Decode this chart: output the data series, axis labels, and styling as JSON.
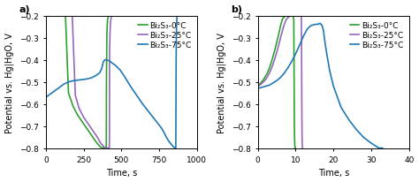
{
  "panel_a": {
    "label": "a)",
    "xlabel": "Time, s",
    "ylabel": "Potential vs. Hg|HgO, V",
    "xlim": [
      0,
      1000
    ],
    "ylim": [
      -0.8,
      -0.2
    ],
    "yticks": [
      -0.8,
      -0.7,
      -0.6,
      -0.5,
      -0.4,
      -0.3,
      -0.2
    ],
    "xticks": [
      0,
      250,
      500,
      750,
      1000
    ],
    "legend_labels": [
      "Bi₂S₃-0°C",
      "Bi₂S₃-25°C",
      "Bi₂S₃-75°C"
    ],
    "colors": [
      "#2ca02c",
      "#9467bd",
      "#1f77b4"
    ],
    "green_t": [
      130,
      150,
      180,
      210,
      240,
      270,
      300,
      330,
      360,
      380,
      395,
      400,
      400.5,
      401,
      404,
      408,
      413,
      418
    ],
    "green_v": [
      -0.2,
      -0.55,
      -0.61,
      -0.65,
      -0.68,
      -0.71,
      -0.74,
      -0.77,
      -0.795,
      -0.8,
      -0.8,
      -0.8,
      -0.75,
      -0.5,
      -0.28,
      -0.22,
      -0.205,
      -0.2
    ],
    "purple_t": [
      175,
      195,
      220,
      250,
      280,
      310,
      340,
      365,
      393,
      410,
      420,
      421,
      421.5,
      422,
      425,
      428,
      432,
      437
    ],
    "purple_v": [
      -0.2,
      -0.56,
      -0.62,
      -0.66,
      -0.69,
      -0.72,
      -0.75,
      -0.78,
      -0.8,
      -0.8,
      -0.8,
      -0.75,
      -0.5,
      -0.35,
      -0.27,
      -0.23,
      -0.21,
      -0.2
    ],
    "blue_t": [
      0,
      30,
      60,
      90,
      120,
      150,
      180,
      210,
      240,
      270,
      300,
      330,
      355,
      370,
      375,
      380,
      385,
      390,
      395,
      400,
      420,
      440,
      460,
      490,
      520,
      560,
      600,
      640,
      680,
      720,
      755,
      770,
      790,
      800,
      820,
      845,
      855,
      858,
      860,
      861,
      862,
      863,
      865,
      868
    ],
    "blue_v": [
      -0.57,
      -0.555,
      -0.54,
      -0.525,
      -0.51,
      -0.5,
      -0.495,
      -0.492,
      -0.49,
      -0.487,
      -0.482,
      -0.472,
      -0.46,
      -0.44,
      -0.425,
      -0.41,
      -0.405,
      -0.4,
      -0.4,
      -0.4,
      -0.405,
      -0.415,
      -0.425,
      -0.445,
      -0.475,
      -0.52,
      -0.56,
      -0.6,
      -0.635,
      -0.67,
      -0.7,
      -0.715,
      -0.74,
      -0.755,
      -0.775,
      -0.795,
      -0.8,
      -0.8,
      -0.8,
      -0.6,
      -0.42,
      -0.32,
      -0.24,
      -0.2
    ]
  },
  "panel_b": {
    "label": "b)",
    "xlabel": "Time, s",
    "ylabel": "Potential vs. Hg|HgO, V",
    "xlim": [
      0,
      40
    ],
    "ylim": [
      -0.8,
      -0.2
    ],
    "yticks": [
      -0.8,
      -0.7,
      -0.6,
      -0.5,
      -0.4,
      -0.3,
      -0.2
    ],
    "xticks": [
      0,
      10,
      20,
      30,
      40
    ],
    "legend_labels": [
      "Bi₂S₃-0°C",
      "Bi₂S₃-25°C",
      "Bi₂S₃-75°C"
    ],
    "colors": [
      "#2ca02c",
      "#9467bd",
      "#1f77b4"
    ],
    "green_t": [
      0,
      0.5,
      1.0,
      1.5,
      2.0,
      2.5,
      3.0,
      3.5,
      4.0,
      4.5,
      5.0,
      5.5,
      6.0,
      6.5,
      7.0,
      7.5,
      8.0,
      8.5,
      9.0,
      9.3,
      9.5,
      9.55,
      9.6,
      9.65,
      9.7,
      9.75,
      9.8,
      9.85,
      9.9
    ],
    "green_v": [
      -0.52,
      -0.51,
      -0.5,
      -0.49,
      -0.475,
      -0.46,
      -0.44,
      -0.415,
      -0.385,
      -0.355,
      -0.32,
      -0.285,
      -0.245,
      -0.215,
      -0.205,
      -0.2,
      -0.2,
      -0.2,
      -0.2,
      -0.2,
      -0.22,
      -0.35,
      -0.55,
      -0.68,
      -0.75,
      -0.78,
      -0.795,
      -0.8,
      -0.8
    ],
    "purple_t": [
      0,
      0.5,
      1.0,
      1.5,
      2.0,
      2.5,
      3.0,
      3.5,
      4.0,
      4.5,
      5.0,
      5.5,
      6.0,
      6.5,
      7.0,
      7.5,
      8.0,
      8.5,
      9.0,
      9.5,
      10.0,
      10.5,
      11.0,
      11.4,
      11.5,
      11.55,
      11.6,
      11.65,
      11.7,
      11.75,
      11.8
    ],
    "purple_v": [
      -0.52,
      -0.515,
      -0.508,
      -0.5,
      -0.49,
      -0.478,
      -0.462,
      -0.443,
      -0.42,
      -0.394,
      -0.365,
      -0.334,
      -0.3,
      -0.268,
      -0.238,
      -0.218,
      -0.207,
      -0.202,
      -0.2,
      -0.2,
      -0.2,
      -0.2,
      -0.2,
      -0.2,
      -0.21,
      -0.32,
      -0.52,
      -0.67,
      -0.76,
      -0.79,
      -0.8
    ],
    "blue_t": [
      0,
      1,
      2,
      3,
      4,
      5,
      6,
      7,
      8,
      9,
      10,
      11,
      12,
      13,
      14,
      15,
      16,
      16.5,
      17,
      17.3,
      17.4,
      17.45,
      17.5,
      18,
      19,
      20,
      22,
      24,
      26,
      28,
      30,
      32,
      33
    ],
    "blue_v": [
      -0.53,
      -0.525,
      -0.52,
      -0.515,
      -0.505,
      -0.494,
      -0.48,
      -0.46,
      -0.435,
      -0.406,
      -0.372,
      -0.335,
      -0.295,
      -0.262,
      -0.245,
      -0.24,
      -0.238,
      -0.235,
      -0.245,
      -0.265,
      -0.27,
      -0.28,
      -0.29,
      -0.35,
      -0.45,
      -0.52,
      -0.615,
      -0.67,
      -0.715,
      -0.752,
      -0.778,
      -0.8,
      -0.8
    ]
  },
  "figure_bg": "#ffffff",
  "axes_bg": "#ffffff",
  "line_width": 1.2,
  "font_size": 7,
  "legend_font_size": 6.5
}
